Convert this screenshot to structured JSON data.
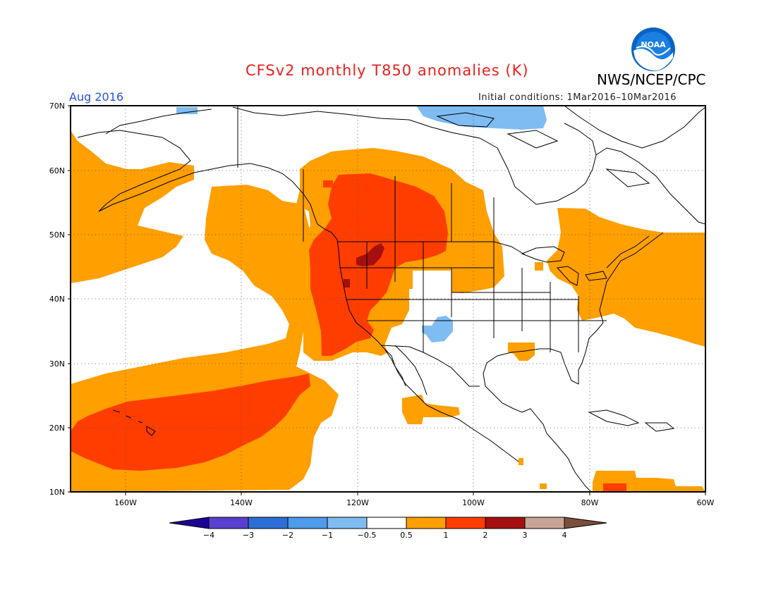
{
  "title": "CFSv2 monthly T850 anomalies (K)",
  "organization": "NWS/NCEP/CPC",
  "logo_text": "NOAA",
  "valid_month": "Aug 2016",
  "initial_conditions": "Initial conditions: 1Mar2016–10Mar2016",
  "map": {
    "lat_ticks": [
      "70N",
      "60N",
      "50N",
      "40N",
      "30N",
      "20N",
      "10N"
    ],
    "lon_ticks": [
      "160W",
      "140W",
      "120W",
      "100W",
      "80W",
      "60W"
    ],
    "anomaly_regions": [
      {
        "area": "Northwest North America and Rockies",
        "range": "1 to 2"
      },
      {
        "area": "Northern Rockies core",
        "range": "2 to 3"
      },
      {
        "area": "Central subtropical Pacific near Hawaii",
        "range": "1 to 2"
      },
      {
        "area": "Northeast US and eastern Canada",
        "range": "0.5 to 1"
      },
      {
        "area": "Southwest US (New Mexico)",
        "range": "-1 to -0.5"
      },
      {
        "area": "Arctic coast north of Canada",
        "range": "-1 to -0.5"
      }
    ]
  },
  "colorbar": {
    "labels": [
      "−4",
      "−3",
      "−2",
      "−1",
      "−0.5",
      "0.5",
      "1",
      "2",
      "3",
      "4"
    ],
    "colors": [
      "#1e0096",
      "#5a3fd0",
      "#2b6fd6",
      "#4d9bea",
      "#7fbcf2",
      "#ffffff",
      "#ff9f00",
      "#ff3d00",
      "#a50f0f",
      "#c9a494",
      "#7a4f3c"
    ]
  },
  "colors": {
    "title": "#e8211d",
    "month_label": "#2255dd",
    "pos_05_1": "#ff9f00",
    "pos_1_2": "#ff3d00",
    "pos_2_3": "#a50f0f",
    "neg_05_1": "#7fbcf2"
  }
}
